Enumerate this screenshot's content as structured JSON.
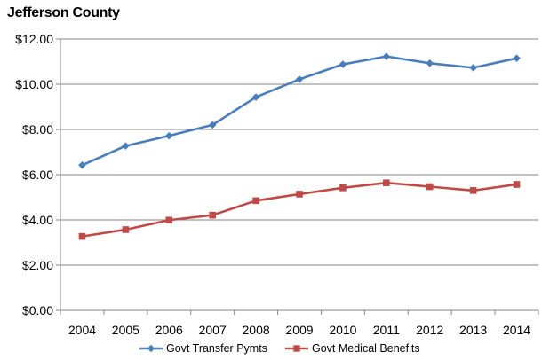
{
  "chart_data": {
    "type": "line",
    "title": "Jefferson County",
    "xlabel": "",
    "ylabel": "",
    "x": [
      "2004",
      "2005",
      "2006",
      "2007",
      "2008",
      "2009",
      "2010",
      "2011",
      "2012",
      "2013",
      "2014"
    ],
    "ylim": [
      0,
      12
    ],
    "y_ticks": [
      0,
      2,
      4,
      6,
      8,
      10,
      12
    ],
    "y_tick_labels": [
      "$0.00",
      "$2.00",
      "$4.00",
      "$6.00",
      "$8.00",
      "$10.00",
      "$12.00"
    ],
    "grid": "horizontal",
    "legend_position": "bottom",
    "series": [
      {
        "name": "Govt Transfer Pymts",
        "color": "#4A7EBB",
        "marker": "diamond",
        "values": [
          6.42,
          7.27,
          7.72,
          8.2,
          9.43,
          10.22,
          10.88,
          11.23,
          10.93,
          10.73,
          11.15
        ]
      },
      {
        "name": "Govt Medical Benefits",
        "color": "#BE4B48",
        "marker": "square",
        "values": [
          3.27,
          3.57,
          3.99,
          4.21,
          4.85,
          5.14,
          5.42,
          5.64,
          5.47,
          5.3,
          5.57
        ]
      }
    ]
  }
}
